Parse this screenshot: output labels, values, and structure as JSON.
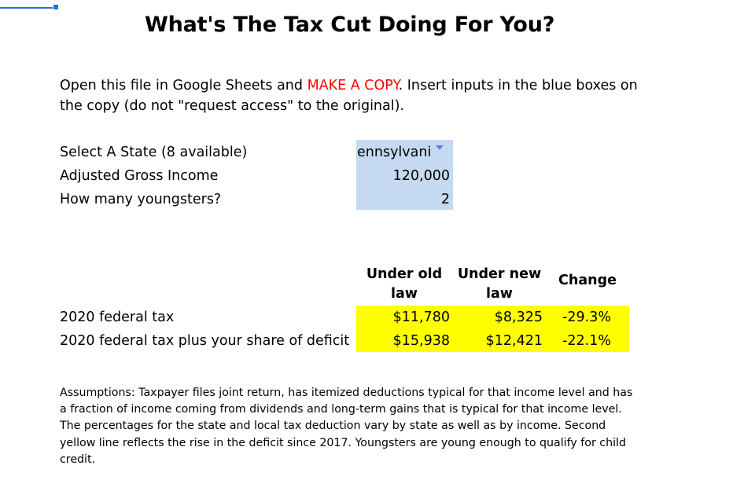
{
  "title": "What's The Tax Cut Doing For You?",
  "intro": {
    "before": "Open this file in Google Sheets and ",
    "highlight": "MAKE A COPY",
    "after": ". Insert inputs in the blue boxes on the copy (do not \"request access\" to the original).",
    "highlight_color": "#ff0000"
  },
  "inputs": [
    {
      "label": "Select A State (8 available)",
      "value": "ennsylvani"
    },
    {
      "label": "Adjusted Gross Income",
      "value": "120,000"
    },
    {
      "label": "How many youngsters?",
      "value": "2"
    }
  ],
  "results": {
    "headers": {
      "old": "Under old law",
      "new": "Under new law",
      "change": "Change"
    },
    "rows": [
      {
        "label": "2020 federal tax",
        "old": "$11,780",
        "new": "$8,325",
        "change": "-29.3%"
      },
      {
        "label": "2020 federal tax plus your share of deficit",
        "old": "$15,938",
        "new": "$12,421",
        "change": "-22.1%"
      }
    ]
  },
  "assumptions": "Assumptions: Taxpayer files joint return, has itemized deductions typical for that income level and has a fraction of income coming from dividends and long-term gains that is typical for that income level. The percentages for the state and local tax deduction vary by state as well as by income. Second yellow line reflects the rise in the deficit since 2017. Youngsters are young enough to qualify for child credit.",
  "colors": {
    "input_fill": "#c5d9f1",
    "result_fill": "#ffff00",
    "selection": "#1a73e8",
    "dropdown_arrow": "#5b87d6"
  },
  "icons": {
    "state_dropdown": "chevron-down-icon"
  }
}
